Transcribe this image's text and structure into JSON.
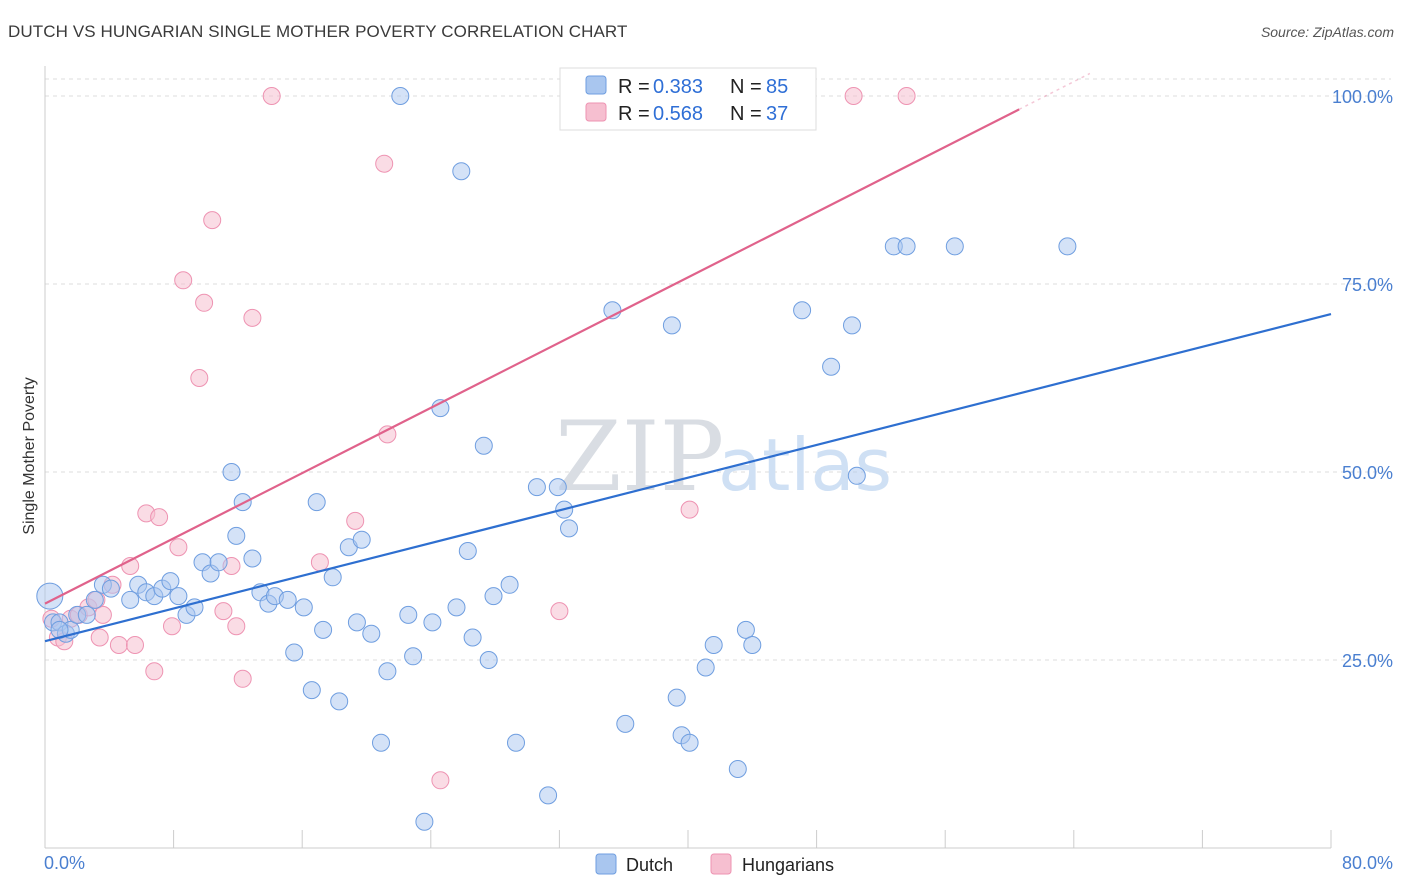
{
  "header": {
    "title": "DUTCH VS HUNGARIAN SINGLE MOTHER POVERTY CORRELATION CHART",
    "source": "Source: ZipAtlas.com"
  },
  "watermark": {
    "zip": "ZIP",
    "atlas": "atlas"
  },
  "legend": {
    "dutch": {
      "r_label": "R = ",
      "r_value": "0.383",
      "n_label": "N = ",
      "n_value": "85"
    },
    "hungarians": {
      "r_label": "R = ",
      "r_value": "0.568",
      "n_label": "N = ",
      "n_value": "37"
    }
  },
  "bottom_legend": {
    "dutch": "Dutch",
    "hungarians": "Hungarians"
  },
  "colors": {
    "dutch_fill": "#a9c6ef",
    "dutch_stroke": "#6f9ee0",
    "dutch_line": "#2e6fd0",
    "hungarian_fill": "#f6bfd0",
    "hungarian_stroke": "#ee93b2",
    "hungarian_line": "#e0628b",
    "tick_text": "#4a7fd0",
    "grid": "#dcdcdc"
  },
  "chart_data": {
    "type": "scatter",
    "title": "DUTCH VS HUNGARIAN SINGLE MOTHER POVERTY CORRELATION CHART",
    "xlabel": "",
    "ylabel": "Single Mother Poverty",
    "xlim": [
      0,
      80
    ],
    "ylim": [
      0,
      102
    ],
    "x_tick_labels": [
      "0.0%",
      "80.0%"
    ],
    "y_ticks": [
      25,
      50,
      75,
      100
    ],
    "y_tick_labels": [
      "25.0%",
      "50.0%",
      "75.0%",
      "100.0%"
    ],
    "grid": true,
    "series": [
      {
        "name": "Dutch",
        "r": 0.383,
        "n": 85,
        "trend": {
          "x": [
            0,
            80
          ],
          "y": [
            27.5,
            71.0
          ]
        },
        "points": [
          [
            0.3,
            33.5
          ],
          [
            0.5,
            30.0
          ],
          [
            0.9,
            30.0
          ],
          [
            1.3,
            28.5
          ],
          [
            1.6,
            29.0
          ],
          [
            2.0,
            31.0
          ],
          [
            2.6,
            31.0
          ],
          [
            3.1,
            33.0
          ],
          [
            3.6,
            35.0
          ],
          [
            4.1,
            34.5
          ],
          [
            5.3,
            33.0
          ],
          [
            5.8,
            35.0
          ],
          [
            6.3,
            34.0
          ],
          [
            6.8,
            33.5
          ],
          [
            7.3,
            34.5
          ],
          [
            7.8,
            35.5
          ],
          [
            8.3,
            33.5
          ],
          [
            8.8,
            31.0
          ],
          [
            9.3,
            32.0
          ],
          [
            9.8,
            38.0
          ],
          [
            10.3,
            36.5
          ],
          [
            10.8,
            38.0
          ],
          [
            11.6,
            50.0
          ],
          [
            11.9,
            41.5
          ],
          [
            12.3,
            46.0
          ],
          [
            12.9,
            38.5
          ],
          [
            13.4,
            34.0
          ],
          [
            13.9,
            32.5
          ],
          [
            14.3,
            33.5
          ],
          [
            15.1,
            33.0
          ],
          [
            16.1,
            32.0
          ],
          [
            15.5,
            26.0
          ],
          [
            16.6,
            21.0
          ],
          [
            16.9,
            46.0
          ],
          [
            17.3,
            29.0
          ],
          [
            17.9,
            36.0
          ],
          [
            18.3,
            19.5
          ],
          [
            18.9,
            40.0
          ],
          [
            19.4,
            30.0
          ],
          [
            19.7,
            41.0
          ],
          [
            20.3,
            28.5
          ],
          [
            20.9,
            14.0
          ],
          [
            21.3,
            23.5
          ],
          [
            22.1,
            100.0
          ],
          [
            22.6,
            31.0
          ],
          [
            22.9,
            25.5
          ],
          [
            23.6,
            3.5
          ],
          [
            24.1,
            30.0
          ],
          [
            24.6,
            58.5
          ],
          [
            25.6,
            32.0
          ],
          [
            25.9,
            90.0
          ],
          [
            26.3,
            39.5
          ],
          [
            26.6,
            28.0
          ],
          [
            27.3,
            53.5
          ],
          [
            27.6,
            25.0
          ],
          [
            27.9,
            33.5
          ],
          [
            28.9,
            35.0
          ],
          [
            29.3,
            14.0
          ],
          [
            30.6,
            48.0
          ],
          [
            31.3,
            7.0
          ],
          [
            31.9,
            48.0
          ],
          [
            32.3,
            45.0
          ],
          [
            32.6,
            42.5
          ],
          [
            33.9,
            100.0
          ],
          [
            35.1,
            100.0
          ],
          [
            35.3,
            71.5
          ],
          [
            36.1,
            16.5
          ],
          [
            39.0,
            69.5
          ],
          [
            39.3,
            20.0
          ],
          [
            39.6,
            15.0
          ],
          [
            40.1,
            14.0
          ],
          [
            41.1,
            24.0
          ],
          [
            41.6,
            27.0
          ],
          [
            43.1,
            10.5
          ],
          [
            43.6,
            29.0
          ],
          [
            44.0,
            27.0
          ],
          [
            47.1,
            71.5
          ],
          [
            48.9,
            64.0
          ],
          [
            50.2,
            69.5
          ],
          [
            50.5,
            49.5
          ],
          [
            52.8,
            80.0
          ],
          [
            53.6,
            80.0
          ],
          [
            56.6,
            80.0
          ],
          [
            63.6,
            80.0
          ],
          [
            0.9,
            29.0
          ]
        ]
      },
      {
        "name": "Hungarians",
        "r": 0.568,
        "n": 37,
        "trend": {
          "x": [
            0,
            65
          ],
          "y": [
            32.5,
            103.0
          ]
        },
        "points": [
          [
            0.4,
            30.5
          ],
          [
            0.8,
            28.0
          ],
          [
            1.2,
            27.5
          ],
          [
            1.6,
            30.5
          ],
          [
            2.1,
            31.0
          ],
          [
            2.7,
            32.0
          ],
          [
            3.2,
            33.0
          ],
          [
            3.6,
            31.0
          ],
          [
            4.2,
            35.0
          ],
          [
            4.6,
            27.0
          ],
          [
            5.3,
            37.5
          ],
          [
            5.6,
            27.0
          ],
          [
            6.3,
            44.5
          ],
          [
            6.8,
            23.5
          ],
          [
            7.1,
            44.0
          ],
          [
            7.9,
            29.5
          ],
          [
            8.3,
            40.0
          ],
          [
            8.6,
            75.5
          ],
          [
            9.6,
            62.5
          ],
          [
            9.9,
            72.5
          ],
          [
            10.4,
            83.5
          ],
          [
            11.1,
            31.5
          ],
          [
            11.6,
            37.5
          ],
          [
            11.9,
            29.5
          ],
          [
            12.3,
            22.5
          ],
          [
            12.9,
            70.5
          ],
          [
            14.1,
            100.0
          ],
          [
            17.1,
            38.0
          ],
          [
            19.3,
            43.5
          ],
          [
            21.1,
            91.0
          ],
          [
            21.3,
            55.0
          ],
          [
            24.6,
            9.0
          ],
          [
            32.0,
            31.5
          ],
          [
            40.1,
            45.0
          ],
          [
            50.3,
            100.0
          ],
          [
            53.6,
            100.0
          ],
          [
            3.4,
            28.0
          ]
        ]
      }
    ]
  }
}
